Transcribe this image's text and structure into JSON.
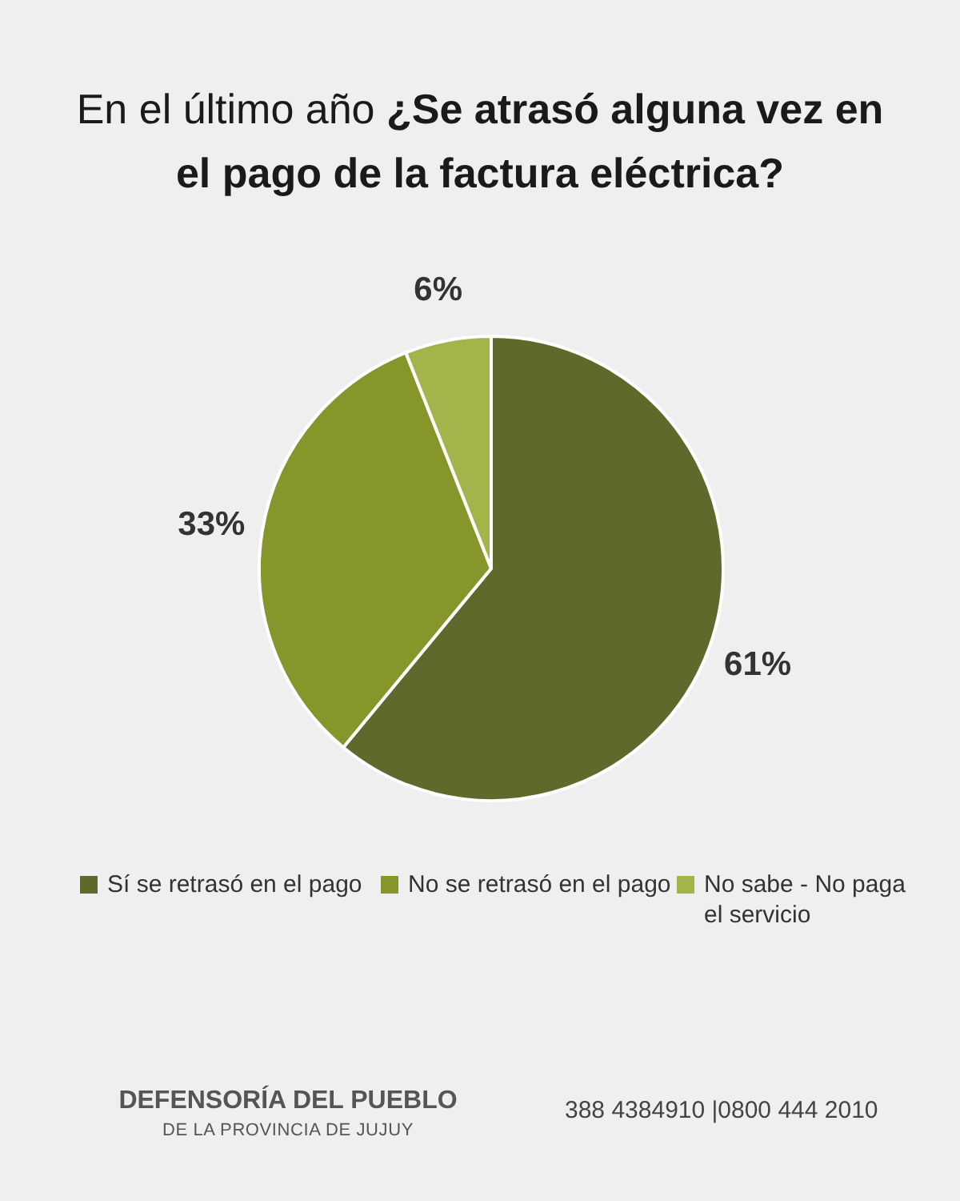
{
  "chart_data": {
    "type": "pie",
    "title": "En el último año ¿Se atrasó alguna vez en el pago de la factura eléctrica?",
    "categories": [
      "Sí se retrasó en el pago",
      "No se retrasó en el pago",
      "No sabe - No paga el servicio"
    ],
    "values": [
      61,
      33,
      6
    ],
    "colors": [
      "#5e6a2c",
      "#87962b",
      "#a3b54a"
    ],
    "value_labels": [
      "61%",
      "33%",
      "6%"
    ],
    "legend": "bottom",
    "annotations": [
      "DEFENSORÍA DEL PUEBLO",
      "DE LA PROVINCIA DE JUJUY",
      "388 4384910 |0800 444 2010"
    ]
  }
}
